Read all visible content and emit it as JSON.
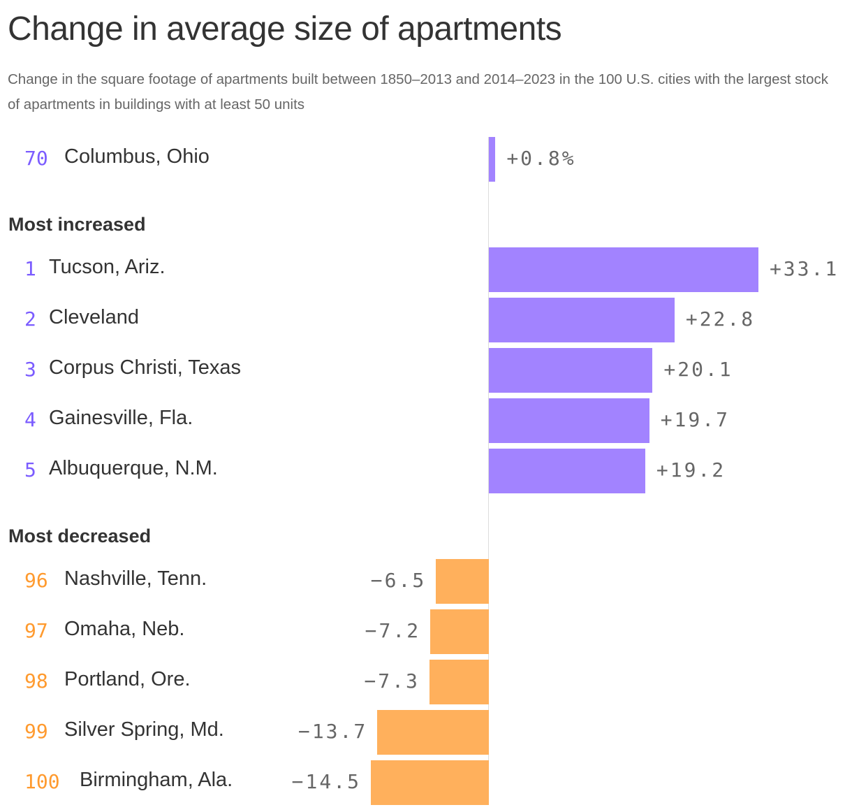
{
  "chart_data": {
    "type": "bar",
    "orientation": "horizontal",
    "title": "Change in average size of apartments",
    "subtitle": "Change in the square footage of apartments built between 1850–2013 and 2014–2023 in the 100 U.S. cities with the largest stock of apartments in buildings with at least 50 units",
    "unit": "%",
    "colors": {
      "positive_bar": "#a283ff",
      "positive_rank": "#7b5cff",
      "negative_bar": "#ffb05c",
      "negative_rank": "#ff9a2e"
    },
    "highlight": {
      "rank": "70",
      "city": "Columbus, Ohio",
      "value": 0.8,
      "label": "+0.8%"
    },
    "groups": [
      {
        "name": "Most increased",
        "items": [
          {
            "rank": "1",
            "city": "Tucson, Ariz.",
            "value": 33.1,
            "label": "+33.1"
          },
          {
            "rank": "2",
            "city": "Cleveland",
            "value": 22.8,
            "label": "+22.8"
          },
          {
            "rank": "3",
            "city": "Corpus Christi, Texas",
            "value": 20.1,
            "label": "+20.1"
          },
          {
            "rank": "4",
            "city": "Gainesville, Fla.",
            "value": 19.7,
            "label": "+19.7"
          },
          {
            "rank": "5",
            "city": "Albuquerque, N.M.",
            "value": 19.2,
            "label": "+19.2"
          }
        ]
      },
      {
        "name": "Most decreased",
        "items": [
          {
            "rank": "96",
            "city": "Nashville, Tenn.",
            "value": -6.5,
            "label": "−6.5"
          },
          {
            "rank": "97",
            "city": "Omaha, Neb.",
            "value": -7.2,
            "label": "−7.2"
          },
          {
            "rank": "98",
            "city": "Portland, Ore.",
            "value": -7.3,
            "label": "−7.3"
          },
          {
            "rank": "99",
            "city": "Silver Spring, Md.",
            "value": -13.7,
            "label": "−13.7"
          },
          {
            "rank": "100",
            "city": "Birmingham, Ala.",
            "value": -14.5,
            "label": "−14.5"
          }
        ]
      }
    ]
  }
}
